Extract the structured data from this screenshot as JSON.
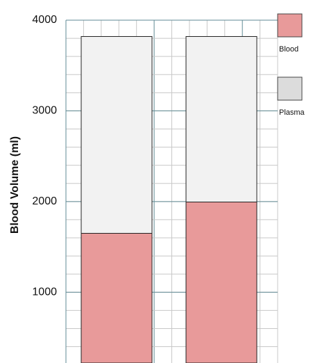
{
  "chart_data": {
    "type": "stacked_bar",
    "y_label": "Blood Volume (ml)",
    "categories": [
      null,
      null
    ],
    "series": [
      {
        "name": "Blood",
        "color": "#e89a9a",
        "values": [
          1430,
          1775
        ]
      },
      {
        "name": "Plasma",
        "color": "#f2f2f2",
        "values": [
          2170,
          1825
        ]
      }
    ],
    "ylim": [
      220,
      4000
    ],
    "yticks": [
      1000,
      2000,
      3000,
      4000
    ],
    "grid": true,
    "legend": "right"
  }
}
